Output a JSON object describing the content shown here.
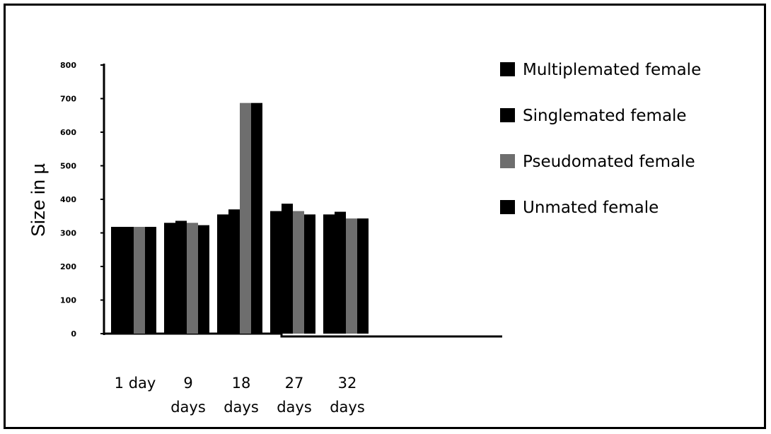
{
  "chart_data": {
    "type": "bar",
    "title": "",
    "xlabel": "",
    "ylabel": "Size in µ",
    "ylim": [
      0,
      800
    ],
    "yticks": [
      "0",
      "100",
      "200",
      "300",
      "400",
      "500",
      "600",
      "700",
      "800"
    ],
    "categories": [
      [
        "1 day"
      ],
      [
        "9",
        "days"
      ],
      [
        "18",
        "days"
      ],
      [
        "27",
        "days"
      ],
      [
        "32",
        "days"
      ]
    ],
    "series": [
      {
        "name": "Multiplemated female",
        "color": "#000000",
        "values": [
          318,
          330,
          355,
          365,
          355
        ]
      },
      {
        "name": "Singlemated female",
        "color": "#000000",
        "values": [
          318,
          336,
          370,
          387,
          363
        ]
      },
      {
        "name": "Pseudomated female",
        "color": "#6e6e6e",
        "values": [
          318,
          330,
          687,
          365,
          343
        ]
      },
      {
        "name": "Unmated female",
        "color": "#000000",
        "values": [
          318,
          323,
          687,
          355,
          343
        ]
      }
    ],
    "legend_position": "right",
    "grid": false
  }
}
